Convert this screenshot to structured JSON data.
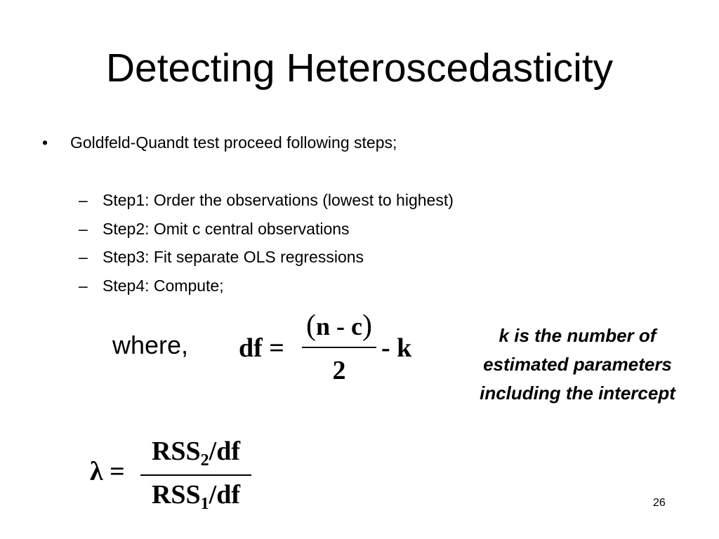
{
  "title": "Detecting Heteroscedasticity",
  "bullet": {
    "marker": "•",
    "text": "Goldfeld-Quandt test proceed following steps;"
  },
  "steps": [
    {
      "marker": "–",
      "text": "Step1: Order the observations (lowest to highest)"
    },
    {
      "marker": "–",
      "text": "Step2: Omit c central observations"
    },
    {
      "marker": "–",
      "text": "Step3: Fit separate OLS regressions"
    },
    {
      "marker": "–",
      "text": "Step4: Compute;"
    }
  ],
  "where_label": "where,",
  "df_formula": {
    "lhs": "df =",
    "open_paren": "(",
    "numerator": "n - c",
    "close_paren": ")",
    "denominator": "2",
    "tail": "- k"
  },
  "lambda_formula": {
    "lhs": "λ =",
    "num_main": "RSS",
    "num_sub": "2",
    "num_tail": "/df",
    "den_main": "RSS",
    "den_sub": "1",
    "den_tail": "/df"
  },
  "note": "k is  the number of estimated parameters including the intercept",
  "page_number": "26"
}
